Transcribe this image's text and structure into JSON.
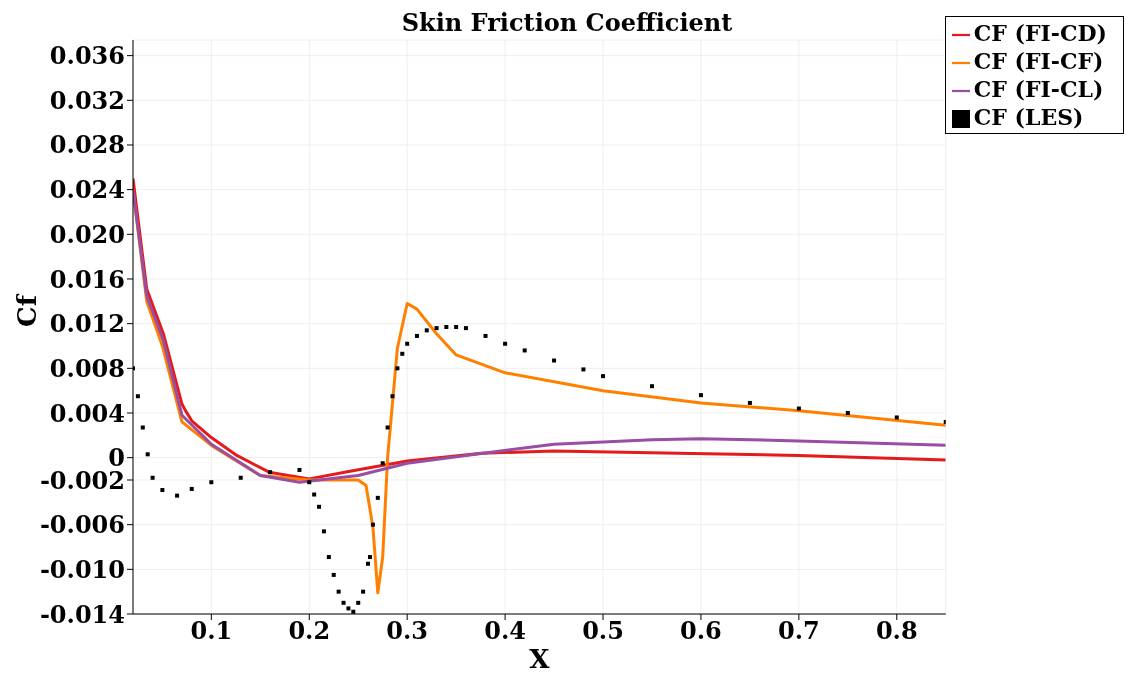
{
  "chart_data": {
    "type": "line",
    "title": "Skin Friction Coefficient",
    "xlabel": "X",
    "ylabel": "Cf",
    "xlim": [
      0.02,
      0.85
    ],
    "ylim": [
      -0.014,
      0.0374
    ],
    "xticks": [
      0.1,
      0.2,
      0.3,
      0.4,
      0.5,
      0.6,
      0.7,
      0.8
    ],
    "yticks": [
      -0.014,
      {
        "value": -0.01,
        "label": "-0.010"
      },
      -0.006,
      -0.002,
      0,
      0.004,
      0.008,
      0.012,
      0.016,
      {
        "value": 0.02,
        "label": "0.020"
      },
      0.024,
      0.028,
      0.032,
      0.036
    ],
    "grid": true,
    "legend": "top right",
    "line_style": "solid",
    "series": [
      {
        "name": "CF (FI-CD)",
        "color": "#e41a1c",
        "x": [
          0.02,
          0.034,
          0.051,
          0.07,
          0.073,
          0.08,
          0.1,
          0.126,
          0.159,
          0.2,
          0.243,
          0.3,
          0.376,
          0.45,
          0.577,
          0.7,
          0.85
        ],
        "values": [
          0.025,
          0.0151,
          0.0111,
          0.0048,
          0.0043,
          0.0033,
          0.0018,
          0.0002,
          -0.0013,
          -0.0019,
          -0.0012,
          -0.0003,
          0.0004,
          0.0006,
          0.0004,
          0.0002,
          -0.0002
        ]
      },
      {
        "name": "CF (FI-CF)",
        "color": "#ff7f00",
        "x": [
          0.02,
          0.034,
          0.05,
          0.07,
          0.1,
          0.15,
          0.2,
          0.25,
          0.258,
          0.265,
          0.27,
          0.275,
          0.28,
          0.29,
          0.3,
          0.31,
          0.33,
          0.35,
          0.4,
          0.5,
          0.6,
          0.7,
          0.85
        ],
        "values": [
          0.024,
          0.014,
          0.01,
          0.0032,
          0.0011,
          -0.0016,
          -0.002,
          -0.002,
          -0.0025,
          -0.0062,
          -0.0121,
          -0.0089,
          0,
          0.0098,
          0.0138,
          0.0133,
          0.0111,
          0.0092,
          0.0076,
          0.006,
          0.0049,
          0.0042,
          0.0029
        ]
      },
      {
        "name": "CF (FI-CL)",
        "color": "#984ea3",
        "x": [
          0.02,
          0.034,
          0.051,
          0.07,
          0.1,
          0.15,
          0.19,
          0.25,
          0.3,
          0.36,
          0.45,
          0.55,
          0.6,
          0.7,
          0.85
        ],
        "values": [
          0.024,
          0.0145,
          0.0105,
          0.0038,
          0.0012,
          -0.0016,
          -0.0022,
          -0.0016,
          -0.0005,
          0.0002,
          0.0012,
          0.0016,
          0.0017,
          0.0015,
          0.0011
        ]
      },
      {
        "name": "CF (LES)",
        "type": "scatter",
        "marker": "square",
        "color": "#000000",
        "x": [
          0.02,
          0.025,
          0.03,
          0.035,
          0.04,
          0.05,
          0.065,
          0.08,
          0.1,
          0.13,
          0.16,
          0.19,
          0.2,
          0.205,
          0.21,
          0.215,
          0.22,
          0.225,
          0.23,
          0.235,
          0.24,
          0.245,
          0.25,
          0.255,
          0.26,
          0.262,
          0.265,
          0.27,
          0.275,
          0.28,
          0.285,
          0.29,
          0.295,
          0.3,
          0.31,
          0.32,
          0.33,
          0.34,
          0.35,
          0.36,
          0.38,
          0.4,
          0.42,
          0.45,
          0.48,
          0.5,
          0.55,
          0.6,
          0.65,
          0.7,
          0.75,
          0.8,
          0.85
        ],
        "values": [
          0.008,
          0.0055,
          0.0027,
          0.0003,
          -0.0018,
          -0.0029,
          -0.0034,
          -0.0028,
          -0.0022,
          -0.0018,
          -0.0013,
          -0.0011,
          -0.0022,
          -0.0033,
          -0.0044,
          -0.0066,
          -0.0089,
          -0.0105,
          -0.012,
          -0.013,
          -0.0135,
          -0.0138,
          -0.013,
          -0.012,
          -0.0095,
          -0.0089,
          -0.006,
          -0.0036,
          -0.0005,
          0.0027,
          0.0055,
          0.008,
          0.0093,
          0.0102,
          0.0109,
          0.0114,
          0.0116,
          0.0117,
          0.0117,
          0.0116,
          0.0109,
          0.0102,
          0.0096,
          0.0087,
          0.0079,
          0.0073,
          0.0064,
          0.0056,
          0.0049,
          0.0044,
          0.004,
          0.0036,
          0.0032
        ]
      }
    ]
  }
}
